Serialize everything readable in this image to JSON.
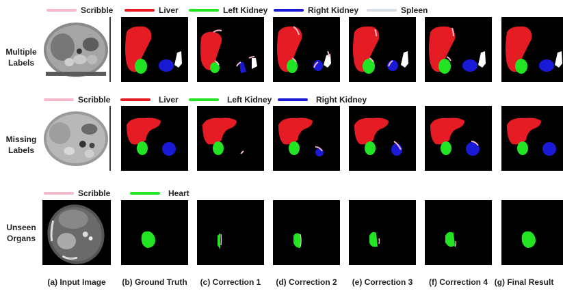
{
  "colors": {
    "scribble": "#f4b8c8",
    "liver": "#e51c23",
    "left_kidney": "#22e422",
    "right_kidney": "#1a1ad6",
    "spleen": "#d8dce6",
    "heart": "#22e422"
  },
  "legends": {
    "row1": [
      "Scribble",
      "Liver",
      "Left Kidney",
      "Right Kidney",
      "Spleen"
    ],
    "row2": [
      "Scribble",
      "Liver",
      "Left Kidney",
      "Right Kidney"
    ],
    "row3": [
      "Scribble",
      "Heart"
    ]
  },
  "row_labels": {
    "row1": "Multiple Labels",
    "row2": "Missing Labels",
    "row3": "Unseen Organs"
  },
  "columns": [
    "(a) Input Image",
    "(b) Ground Truth",
    "(c) Correction 1",
    "(d) Correction 2",
    "(e) Correction 3",
    "(f) Correction 4",
    "(g) Final Result"
  ]
}
